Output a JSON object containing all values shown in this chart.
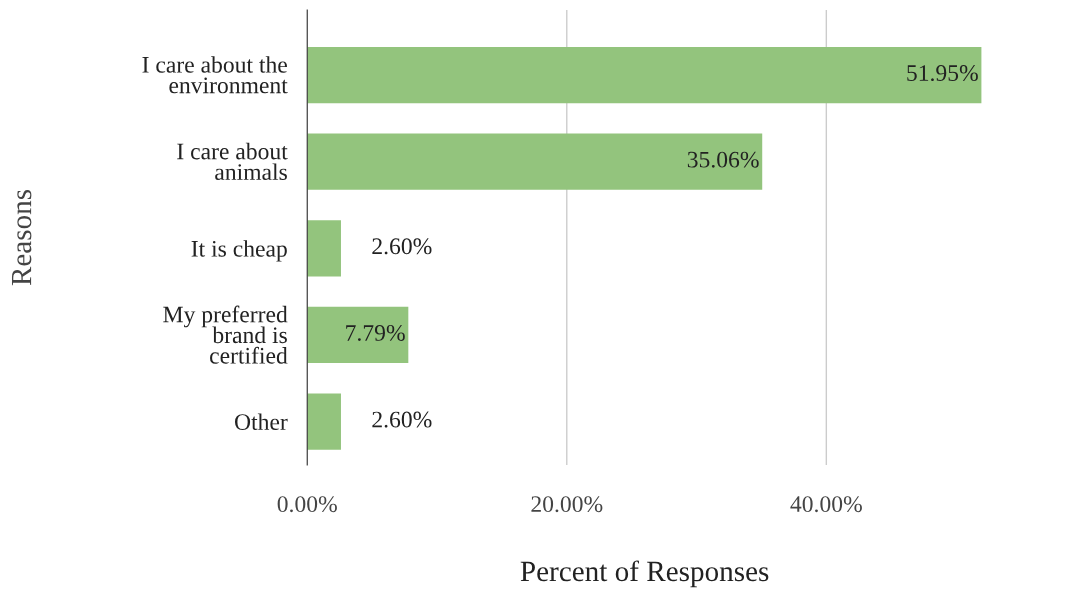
{
  "chart_data": {
    "type": "bar",
    "orientation": "horizontal",
    "xlabel": "Percent of Responses",
    "ylabel": "Reasons",
    "categories": [
      "I care about the\nenvironment",
      "I care about\nanimals",
      "It is cheap",
      "My preferred\nbrand is\ncertified",
      "Other"
    ],
    "values": [
      51.95,
      35.06,
      2.6,
      7.79,
      2.6
    ],
    "value_labels": [
      "51.95%",
      "35.06%",
      "2.60%",
      "7.79%",
      "2.60%"
    ],
    "color": "#93c47d",
    "xlim": [
      0,
      52
    ],
    "xticks": [
      {
        "value": 0,
        "label": "0.00%"
      },
      {
        "value": 20,
        "label": "20.00%"
      },
      {
        "value": 40,
        "label": "40.00%"
      }
    ],
    "grid": "x"
  }
}
